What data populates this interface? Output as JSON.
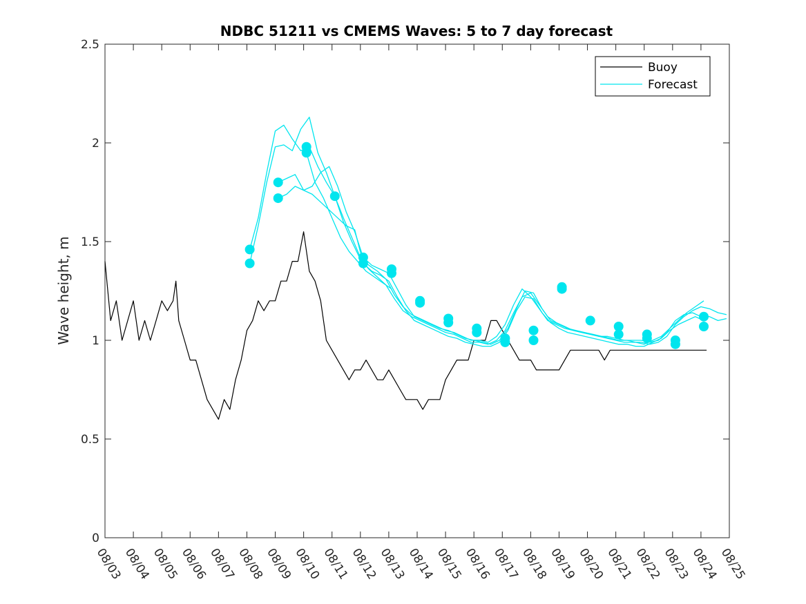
{
  "chart_data": {
    "type": "line",
    "title": "NDBC 51211 vs CMEMS Waves: 5 to 7 day forecast",
    "xlabel": "",
    "ylabel": "Wave height, m",
    "x_unit": "days since 08/03",
    "xlim": [
      0,
      22
    ],
    "ylim": [
      0,
      2.5
    ],
    "yticks": [
      0,
      0.5,
      1,
      1.5,
      2,
      2.5
    ],
    "ytick_labels": [
      "0",
      "0.5",
      "1",
      "1.5",
      "2",
      "2.5"
    ],
    "xticks": [
      0,
      1,
      2,
      3,
      4,
      5,
      6,
      7,
      8,
      9,
      10,
      11,
      12,
      13,
      14,
      15,
      16,
      17,
      18,
      19,
      20,
      21,
      22
    ],
    "xtick_labels": [
      "08/03",
      "08/04",
      "08/05",
      "08/06",
      "08/07",
      "08/08",
      "08/09",
      "08/10",
      "08/11",
      "08/12",
      "08/13",
      "08/14",
      "08/15",
      "08/16",
      "08/17",
      "08/18",
      "08/19",
      "08/20",
      "08/21",
      "08/22",
      "08/23",
      "08/24",
      "08/25"
    ],
    "legend": {
      "position": "top-right",
      "entries": [
        {
          "label": "Buoy",
          "color": "#000000"
        },
        {
          "label": "Forecast",
          "color": "#00e5ee"
        }
      ]
    },
    "series": [
      {
        "name": "Buoy",
        "color": "#000000",
        "x": [
          0,
          0.2,
          0.4,
          0.6,
          0.8,
          1.0,
          1.2,
          1.4,
          1.6,
          1.8,
          2.0,
          2.2,
          2.4,
          2.5,
          2.6,
          2.8,
          3.0,
          3.2,
          3.4,
          3.6,
          3.8,
          4.0,
          4.2,
          4.4,
          4.6,
          4.8,
          5.0,
          5.2,
          5.4,
          5.6,
          5.8,
          6.0,
          6.2,
          6.4,
          6.6,
          6.8,
          7.0,
          7.2,
          7.4,
          7.6,
          7.8,
          8.0,
          8.2,
          8.4,
          8.6,
          8.8,
          9.0,
          9.2,
          9.4,
          9.6,
          9.8,
          10.0,
          10.2,
          10.4,
          10.6,
          10.8,
          11.0,
          11.2,
          11.4,
          11.6,
          11.8,
          11.9,
          12.0,
          12.2,
          12.4,
          12.6,
          12.8,
          13.0,
          13.2,
          13.4,
          13.6,
          13.8,
          14.0,
          14.2,
          14.4,
          14.6,
          14.8,
          15.0,
          15.2,
          15.4,
          15.6,
          15.8,
          16.0,
          16.2,
          16.4,
          16.6,
          16.8,
          17.0,
          17.2,
          17.4,
          17.6,
          17.8,
          18.0,
          18.2,
          18.4,
          18.6,
          18.8,
          19.0,
          19.2,
          19.4,
          19.6,
          19.8,
          20.0,
          20.2,
          20.4,
          20.6,
          20.8,
          21.0,
          21.2
        ],
        "values": [
          1.4,
          1.1,
          1.2,
          1.0,
          1.1,
          1.2,
          1.0,
          1.1,
          1.0,
          1.1,
          1.2,
          1.15,
          1.2,
          1.3,
          1.1,
          1.0,
          0.9,
          0.9,
          0.8,
          0.7,
          0.65,
          0.6,
          0.7,
          0.65,
          0.8,
          0.9,
          1.05,
          1.1,
          1.2,
          1.15,
          1.2,
          1.2,
          1.3,
          1.3,
          1.4,
          1.4,
          1.55,
          1.35,
          1.3,
          1.2,
          1.0,
          0.95,
          0.9,
          0.85,
          0.8,
          0.85,
          0.85,
          0.9,
          0.85,
          0.8,
          0.8,
          0.85,
          0.8,
          0.75,
          0.7,
          0.7,
          0.7,
          0.65,
          0.7,
          0.7,
          0.7,
          0.75,
          0.8,
          0.85,
          0.9,
          0.9,
          0.9,
          1.0,
          1.0,
          1.0,
          1.1,
          1.1,
          1.05,
          1.0,
          0.95,
          0.9,
          0.9,
          0.9,
          0.85,
          0.85,
          0.85,
          0.85,
          0.85,
          0.9,
          0.95,
          0.95,
          0.95,
          0.95,
          0.95,
          0.95,
          0.9,
          0.95,
          0.95,
          0.95,
          0.95,
          0.95,
          0.95,
          0.95,
          0.95,
          0.95,
          0.95,
          0.95,
          0.95,
          0.95,
          0.95,
          0.95,
          0.95,
          0.95,
          0.95
        ]
      },
      {
        "name": "Forecast 1",
        "color": "#00e5ee",
        "x": [
          5.1,
          5.4,
          5.7,
          6.0,
          6.3,
          6.6,
          6.9,
          7.2,
          7.5,
          7.8,
          8.1,
          8.4,
          8.7,
          9.0,
          9.3,
          9.6,
          9.9,
          10.2,
          10.5,
          10.8,
          11.1,
          11.4,
          11.7,
          12.0,
          12.3,
          12.6,
          12.9,
          13.2,
          13.5,
          13.8,
          14.1,
          14.4,
          14.7,
          15.0,
          15.3,
          15.6,
          15.9,
          16.2,
          16.5,
          16.8,
          17.1,
          17.4,
          17.7,
          18.0,
          18.3,
          18.6,
          18.9,
          19.2,
          19.5,
          19.8,
          20.1,
          20.4,
          20.7,
          21.0,
          21.3,
          21.6,
          21.9
        ],
        "values": [
          1.46,
          1.62,
          1.85,
          2.06,
          2.09,
          2.02,
          1.96,
          1.98,
          1.88,
          1.8,
          1.73,
          1.62,
          1.52,
          1.42,
          1.38,
          1.35,
          1.31,
          1.23,
          1.17,
          1.13,
          1.11,
          1.09,
          1.07,
          1.05,
          1.04,
          1.02,
          1.0,
          1.0,
          0.99,
          1.02,
          1.08,
          1.18,
          1.26,
          1.22,
          1.16,
          1.1,
          1.08,
          1.06,
          1.05,
          1.04,
          1.03,
          1.02,
          1.02,
          1.01,
          1.0,
          1.0,
          1.0,
          0.99,
          1.0,
          1.04,
          1.1,
          1.13,
          1.14,
          1.12,
          1.12,
          1.1,
          1.11
        ]
      },
      {
        "name": "Forecast 2",
        "color": "#00e5ee",
        "x": [
          5.1,
          5.4,
          5.7,
          6.0,
          6.3,
          6.6,
          6.9,
          7.2,
          7.5,
          7.8,
          8.1,
          8.4,
          8.7,
          9.0,
          9.3,
          9.6,
          9.9,
          10.2,
          10.5,
          10.8,
          11.1,
          11.4,
          11.7,
          12.0,
          12.3,
          12.6,
          12.9,
          13.2,
          13.5,
          13.8,
          14.1,
          14.4,
          14.7,
          15.0,
          15.3,
          15.6,
          15.9,
          16.2,
          16.5,
          16.8,
          17.1,
          17.4,
          17.7,
          18.0,
          18.3,
          18.6,
          18.9,
          19.2,
          19.5,
          19.8,
          20.1,
          20.4,
          20.7,
          21.0,
          21.3,
          21.6,
          21.9
        ],
        "values": [
          1.39,
          1.58,
          1.8,
          1.98,
          1.99,
          1.96,
          2.07,
          2.13,
          1.95,
          1.85,
          1.73,
          1.6,
          1.5,
          1.41,
          1.36,
          1.32,
          1.28,
          1.21,
          1.15,
          1.12,
          1.1,
          1.08,
          1.06,
          1.04,
          1.03,
          1.01,
          0.99,
          0.99,
          0.98,
          1.0,
          1.05,
          1.14,
          1.22,
          1.24,
          1.18,
          1.12,
          1.09,
          1.07,
          1.05,
          1.04,
          1.03,
          1.02,
          1.01,
          1.0,
          0.99,
          0.99,
          0.99,
          0.98,
          0.99,
          1.02,
          1.08,
          1.12,
          1.15,
          1.17,
          1.16,
          1.14,
          1.13
        ]
      },
      {
        "name": "Forecast 3",
        "color": "#00e5ee",
        "x": [
          6.1,
          6.4,
          6.7,
          7.0,
          7.3,
          7.6,
          7.9,
          8.2,
          8.5,
          8.8,
          9.1,
          9.4,
          9.7,
          10.0,
          10.3,
          10.6,
          10.9,
          11.2,
          11.5,
          11.8,
          12.1,
          12.4,
          12.7,
          13.0,
          13.3,
          13.6,
          13.9,
          14.2,
          14.5,
          14.8,
          15.1,
          15.4,
          15.7,
          16.0,
          16.3,
          16.6,
          16.9,
          17.2,
          17.5,
          17.8,
          18.1,
          18.4,
          18.7,
          19.0,
          19.3,
          19.6,
          19.9,
          20.2,
          20.5,
          20.8,
          21.1
        ],
        "values": [
          1.8,
          1.82,
          1.84,
          1.76,
          1.78,
          1.85,
          1.88,
          1.78,
          1.65,
          1.55,
          1.42,
          1.38,
          1.36,
          1.34,
          1.26,
          1.18,
          1.12,
          1.1,
          1.08,
          1.06,
          1.05,
          1.03,
          1.01,
          1.0,
          0.99,
          0.98,
          1.0,
          1.06,
          1.16,
          1.25,
          1.24,
          1.16,
          1.1,
          1.08,
          1.06,
          1.05,
          1.04,
          1.03,
          1.02,
          1.01,
          1.0,
          1.0,
          0.99,
          0.98,
          1.0,
          1.02,
          1.06,
          1.1,
          1.14,
          1.17,
          1.2
        ]
      },
      {
        "name": "Forecast 4",
        "color": "#00e5ee",
        "x": [
          6.1,
          6.4,
          6.7,
          7.0,
          7.3,
          7.6,
          7.9,
          8.2,
          8.5,
          8.8,
          9.1,
          9.4,
          9.7,
          10.0,
          10.3,
          10.6,
          10.9,
          11.2,
          11.5,
          11.8,
          12.1,
          12.4,
          12.7,
          13.0,
          13.3,
          13.6,
          13.9,
          14.2,
          14.5,
          14.8,
          15.1,
          15.4,
          15.7,
          16.0,
          16.3,
          16.6,
          16.9,
          17.2,
          17.5,
          17.8,
          18.1,
          18.4,
          18.7,
          19.0,
          19.3,
          19.6,
          19.9,
          20.2,
          20.5,
          20.8,
          21.1
        ],
        "values": [
          1.72,
          1.74,
          1.78,
          1.76,
          1.74,
          1.7,
          1.66,
          1.62,
          1.58,
          1.56,
          1.39,
          1.35,
          1.33,
          1.3,
          1.22,
          1.15,
          1.1,
          1.08,
          1.06,
          1.04,
          1.02,
          1.01,
          0.99,
          0.98,
          0.97,
          0.97,
          0.99,
          1.05,
          1.15,
          1.22,
          1.21,
          1.14,
          1.09,
          1.06,
          1.04,
          1.03,
          1.02,
          1.01,
          1.0,
          0.99,
          0.98,
          0.98,
          0.97,
          0.97,
          0.99,
          1.01,
          1.05,
          1.08,
          1.1,
          1.12,
          1.1
        ]
      },
      {
        "name": "Forecast 5",
        "color": "#00e5ee",
        "x": [
          7.1,
          7.4,
          7.7,
          8.0,
          8.3,
          8.6,
          8.9,
          9.2,
          9.5,
          9.8,
          10.1
        ],
        "values": [
          1.95,
          1.8,
          1.72,
          1.62,
          1.52,
          1.45,
          1.4,
          1.35,
          1.32,
          1.29,
          1.26
        ]
      }
    ],
    "markers": {
      "color": "#00e5ee",
      "points": [
        [
          5.1,
          1.46
        ],
        [
          5.1,
          1.39
        ],
        [
          6.1,
          1.8
        ],
        [
          6.1,
          1.72
        ],
        [
          7.1,
          1.98
        ],
        [
          7.1,
          1.95
        ],
        [
          8.1,
          1.73
        ],
        [
          9.1,
          1.42
        ],
        [
          9.1,
          1.39
        ],
        [
          10.1,
          1.36
        ],
        [
          10.1,
          1.34
        ],
        [
          11.1,
          1.2
        ],
        [
          11.1,
          1.19
        ],
        [
          12.1,
          1.11
        ],
        [
          12.1,
          1.09
        ],
        [
          13.1,
          1.06
        ],
        [
          13.1,
          1.04
        ],
        [
          14.1,
          1.01
        ],
        [
          14.1,
          0.99
        ],
        [
          15.1,
          1.05
        ],
        [
          15.1,
          1.0
        ],
        [
          16.1,
          1.27
        ],
        [
          16.1,
          1.26
        ],
        [
          17.1,
          1.1
        ],
        [
          18.1,
          1.07
        ],
        [
          18.1,
          1.03
        ],
        [
          19.1,
          1.03
        ],
        [
          19.1,
          1.01
        ],
        [
          20.1,
          1.0
        ],
        [
          20.1,
          0.98
        ],
        [
          21.1,
          1.12
        ],
        [
          21.1,
          1.07
        ]
      ]
    }
  }
}
